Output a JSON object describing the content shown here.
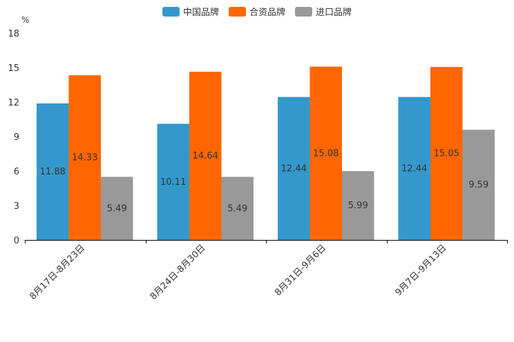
{
  "chart_data": {
    "type": "bar",
    "unit_label": "%",
    "categories": [
      "8月17日-8月23日",
      "8月24日-8月30日",
      "8月31日-9月6日",
      "9月7日-9月13日"
    ],
    "series": [
      {
        "name": "中国品牌",
        "color": "#3399cc",
        "values": [
          11.88,
          10.11,
          12.44,
          12.44
        ],
        "labels": [
          "11.88",
          "10.11",
          "12.44",
          "12.44"
        ]
      },
      {
        "name": "合资品牌",
        "color": "#ff6600",
        "values": [
          14.33,
          14.64,
          15.08,
          15.05
        ],
        "labels": [
          "14.33",
          "14.64",
          "15.08",
          "15.05"
        ]
      },
      {
        "name": "进口品牌",
        "color": "#999999",
        "values": [
          5.49,
          5.49,
          5.99,
          9.59
        ],
        "labels": [
          "5.49",
          "5.49",
          "5.99",
          "9.59"
        ]
      }
    ],
    "ylim": [
      0,
      18
    ],
    "yticks": [
      "0",
      "3",
      "6",
      "9",
      "12",
      "15",
      "18"
    ],
    "legend_position": "top-center",
    "grid": false
  }
}
